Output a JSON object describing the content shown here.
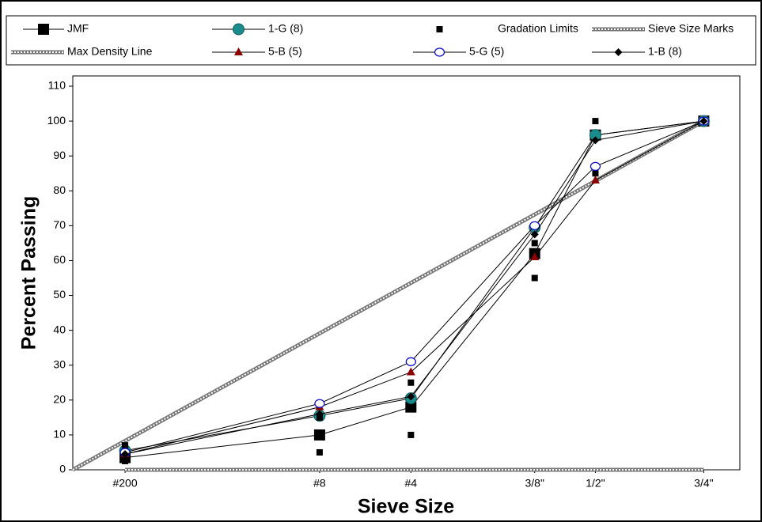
{
  "chart_data": {
    "type": "line",
    "xlabel": "Sieve Size",
    "ylabel": "Percent Passing",
    "xscale": "power",
    "xpower": 0.45,
    "xlim": [
      0,
      21.5
    ],
    "ylim": [
      0,
      110
    ],
    "xticks": [
      {
        "value": 0.075,
        "label": "#200"
      },
      {
        "value": 2.36,
        "label": "#8"
      },
      {
        "value": 4.75,
        "label": "#4"
      },
      {
        "value": 9.5,
        "label": "3/8\""
      },
      {
        "value": 12.5,
        "label": "1/2\""
      },
      {
        "value": 19,
        "label": "3/4\""
      }
    ],
    "yticks": [
      0,
      10,
      20,
      30,
      40,
      50,
      60,
      70,
      80,
      90,
      100,
      110
    ],
    "grid": false,
    "legend": "top",
    "series": [
      {
        "name": "JMF",
        "color": "#000000",
        "marker": "square",
        "line": true,
        "x": [
          0.075,
          2.36,
          4.75,
          9.5,
          12.5,
          19
        ],
        "values": [
          3.5,
          10,
          18,
          62,
          96,
          100
        ]
      },
      {
        "name": "1-G (8)",
        "color": "#1a8c8c",
        "marker": "circle",
        "line": true,
        "x": [
          0.075,
          2.36,
          4.75,
          9.5,
          12.5,
          19
        ],
        "values": [
          5.5,
          15.5,
          20.5,
          69.5,
          96,
          100
        ]
      },
      {
        "name": "Gradation Limits",
        "color": "#000000",
        "marker": "small-square",
        "line": false,
        "x": [
          0.075,
          0.075,
          2.36,
          2.36,
          4.75,
          4.75,
          9.5,
          9.5,
          12.5,
          12.5,
          19,
          19
        ],
        "values": [
          2.5,
          7,
          5,
          15,
          10,
          25,
          55,
          65,
          85,
          100,
          100,
          100
        ]
      },
      {
        "name": "Sieve Size Marks",
        "color": "#777777",
        "marker": "none",
        "line": "hatched",
        "x": [
          0.075,
          2.36,
          4.75,
          9.5,
          12.5,
          19
        ],
        "values": [
          0,
          0,
          0,
          0,
          0,
          0
        ]
      },
      {
        "name": "Max Density Line",
        "color": "#777777",
        "marker": "none",
        "line": "hatched",
        "x": [
          0,
          19
        ],
        "values": [
          0,
          100
        ]
      },
      {
        "name": "5-B (5)",
        "color": "#8b0000",
        "marker": "triangle",
        "line": true,
        "x": [
          0.075,
          2.36,
          4.75,
          9.5,
          12.5,
          19
        ],
        "values": [
          4.5,
          18,
          28,
          61,
          83,
          100
        ]
      },
      {
        "name": "5-G (5)",
        "color": "#1010cc",
        "marker": "open-circle",
        "line": true,
        "x": [
          0.075,
          2.36,
          4.75,
          9.5,
          12.5,
          19
        ],
        "values": [
          5,
          19,
          31,
          70,
          87,
          100
        ]
      },
      {
        "name": "1-B (8)",
        "color": "#000000",
        "marker": "diamond",
        "line": true,
        "x": [
          0.075,
          2.36,
          4.75,
          9.5,
          12.5,
          19
        ],
        "values": [
          4.5,
          16,
          21,
          67.5,
          94.5,
          100
        ]
      }
    ]
  }
}
